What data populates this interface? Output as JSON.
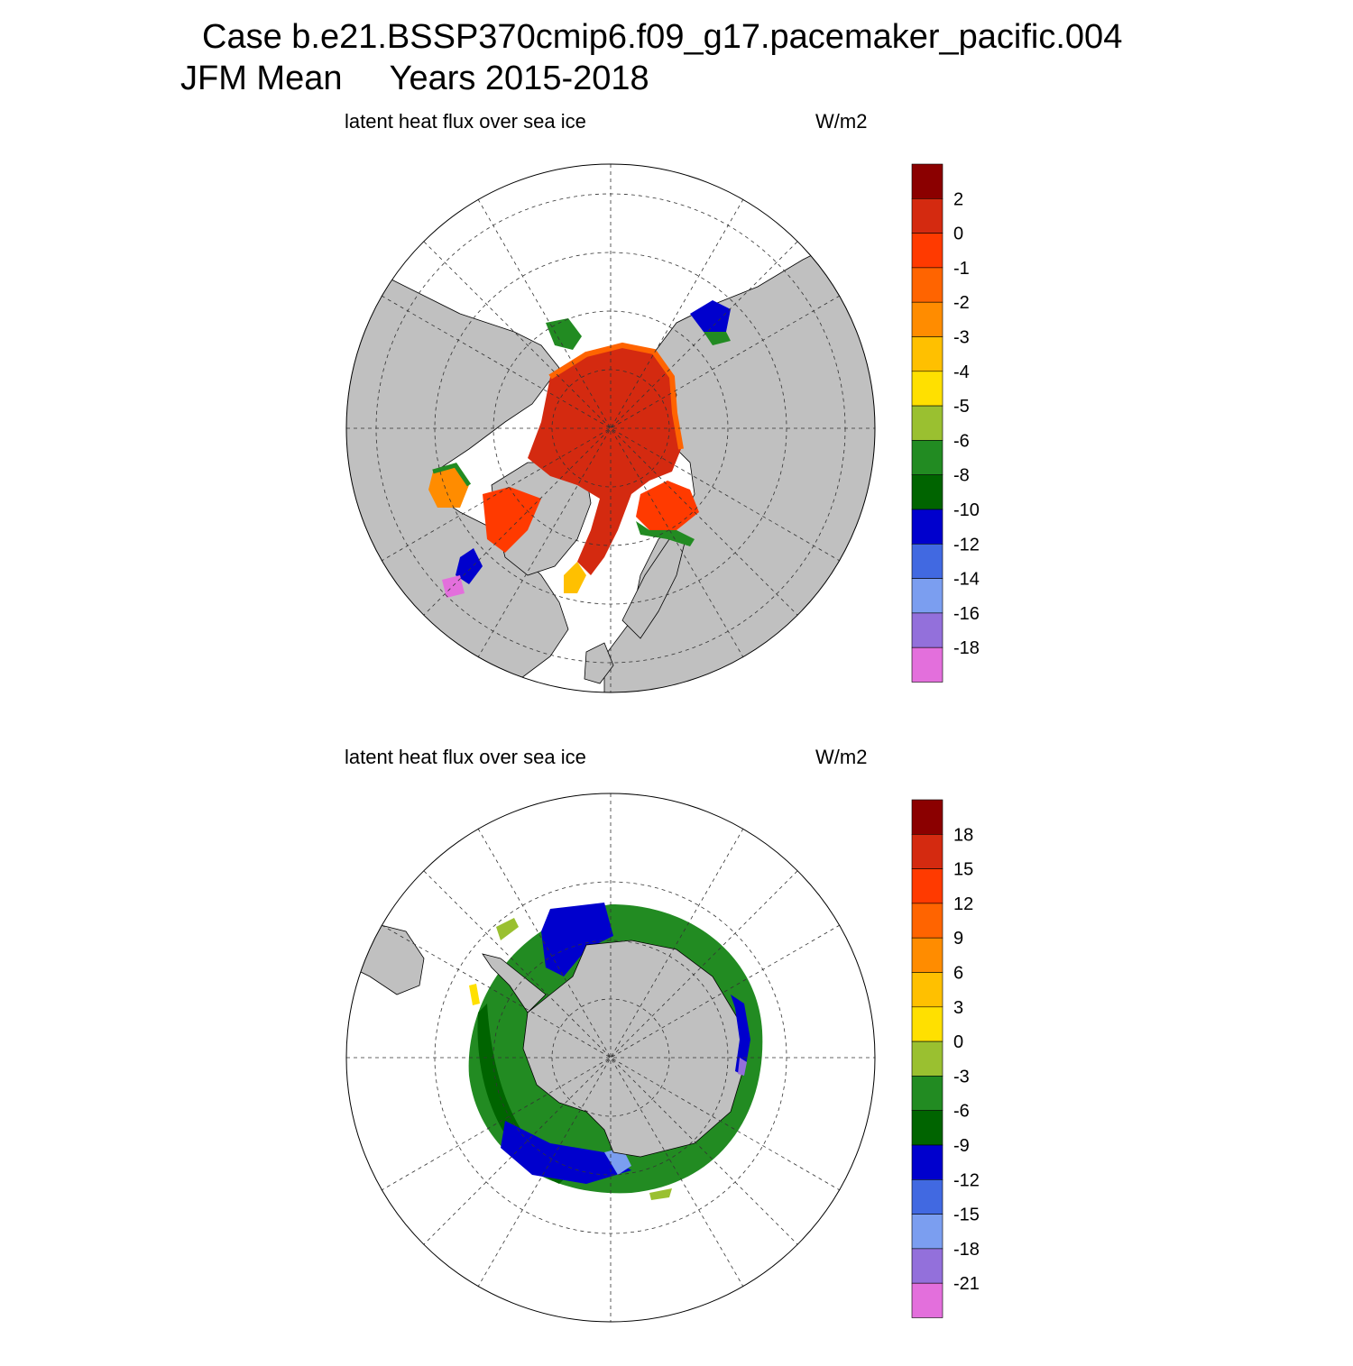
{
  "header": {
    "case_line": "Case b.e21.BSSP370cmip6.f09_g17.pacemaker_pacific.004",
    "season_line": "JFM Mean     Years 2015-2018"
  },
  "panels": [
    {
      "id": "north",
      "title": "latent heat flux over sea ice",
      "units": "W/m2",
      "hemisphere": "north",
      "colorbar": {
        "labels": [
          "2",
          "0",
          "-1",
          "-2",
          "-3",
          "-4",
          "-5",
          "-6",
          "-8",
          "-10",
          "-12",
          "-14",
          "-16",
          "-18"
        ],
        "colors": [
          "#8b0000",
          "#d42a10",
          "#ff3a00",
          "#ff6400",
          "#ff8c00",
          "#ffc000",
          "#ffe000",
          "#9ac030",
          "#228b22",
          "#006400",
          "#0000cd",
          "#4169e1",
          "#7b9ef0",
          "#9370db",
          "#e36fdc"
        ]
      }
    },
    {
      "id": "south",
      "title": "latent heat flux over sea ice",
      "units": "W/m2",
      "hemisphere": "south",
      "colorbar": {
        "labels": [
          "18",
          "15",
          "12",
          "9",
          "6",
          "3",
          "0",
          "-3",
          "-6",
          "-9",
          "-12",
          "-15",
          "-18",
          "-21"
        ],
        "colors": [
          "#8b0000",
          "#d42a10",
          "#ff3a00",
          "#ff6400",
          "#ff8c00",
          "#ffc000",
          "#ffe000",
          "#9ac030",
          "#228b22",
          "#006400",
          "#0000cd",
          "#4169e1",
          "#7b9ef0",
          "#9370db",
          "#e36fdc"
        ]
      }
    }
  ],
  "colors": {
    "land": "#c0c0c0",
    "ocean": "#ffffff",
    "grid": "#333333"
  }
}
